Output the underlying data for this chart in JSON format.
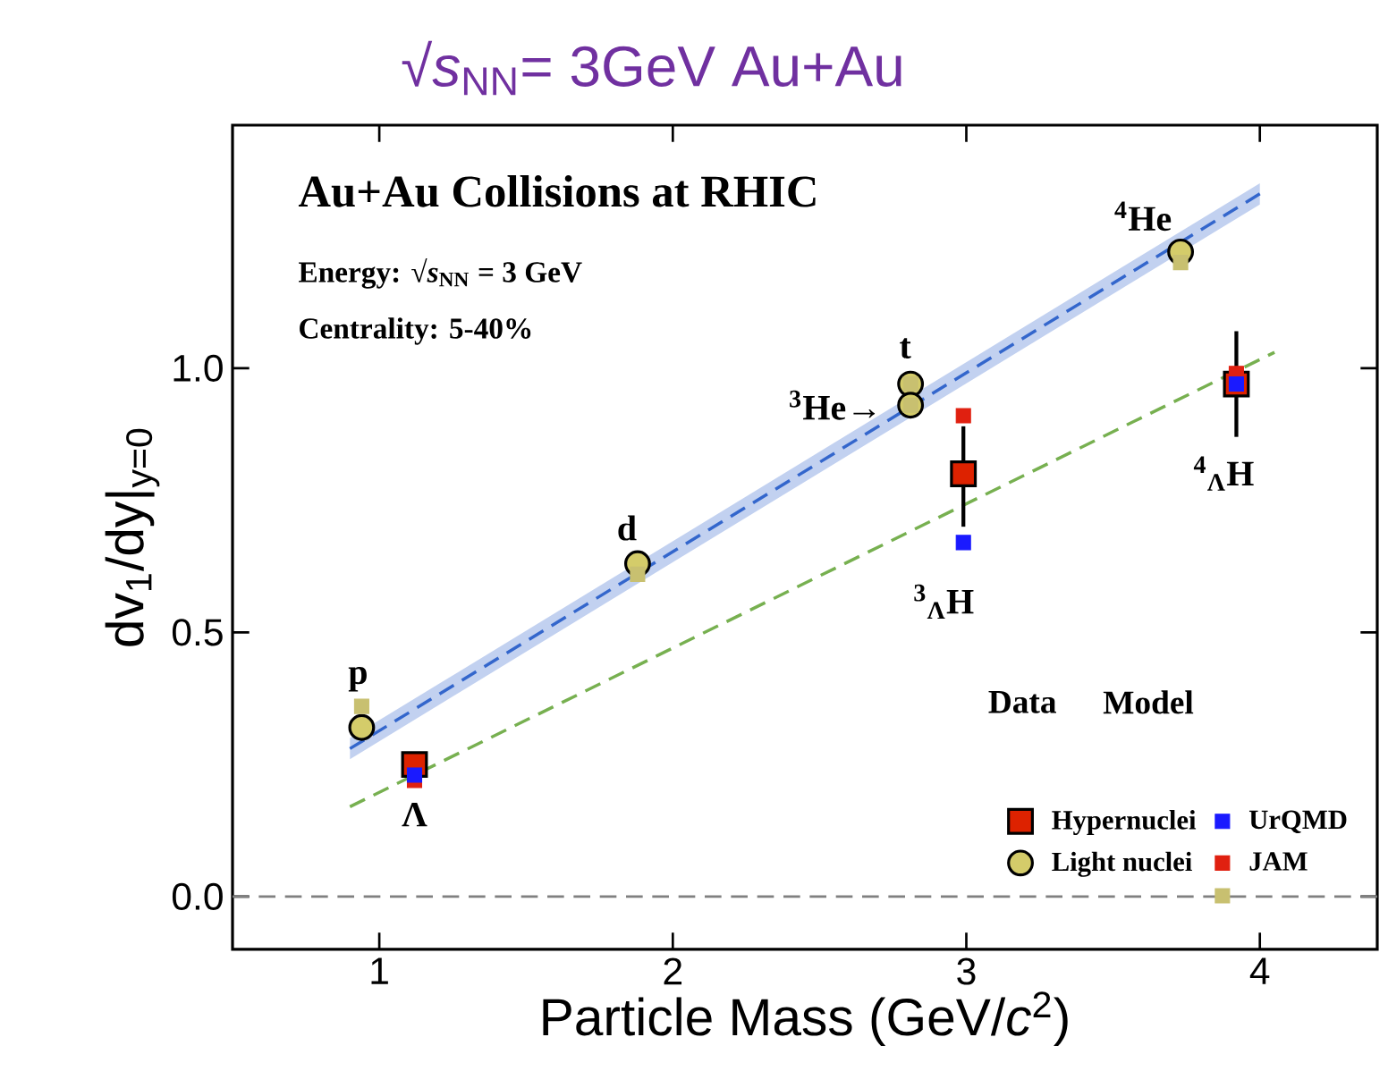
{
  "chart_data": {
    "type": "scatter",
    "title": "√*s*$_{NN}$= 3GeV Au+Au",
    "xlabel": "Particle Mass (GeV/*c*$^{2}$)",
    "ylabel": "dv$_{1}$/dy|$_{y=0}$",
    "xlim": [
      0.5,
      4.4
    ],
    "ylim": [
      -0.1,
      1.46
    ],
    "xticks": [
      1,
      2,
      3,
      4
    ],
    "yticks": [
      {
        "value": 0,
        "label": "0.0"
      },
      {
        "value": 0.5,
        "label": "0.5"
      },
      {
        "value": 1,
        "label": "1.0"
      }
    ],
    "grid": false,
    "legend": "bottom right",
    "ref_lines": [
      {
        "axis": "y",
        "value": 0,
        "color": "#808080",
        "line_style": "dashed"
      }
    ],
    "annotations": [
      "Au+Au Collisions at RHIC",
      "Energy:   √*s*$_{NN}$ = 3 GeV",
      "Centrality: 5-40%",
      "Data",
      "Model",
      {
        "text": "p",
        "x": 0.94,
        "y": 0.32
      },
      {
        "text": "d",
        "x": 1.88,
        "y": 0.63
      },
      {
        "text": "t",
        "x": 2.81,
        "y": 0.97
      },
      {
        "text": "$^{3}$He→",
        "x": 2.81,
        "y": 0.93
      },
      {
        "text": "$^{4}$He",
        "x": 3.73,
        "y": 1.22
      },
      {
        "text": "Λ",
        "x": 1.12,
        "y": 0.25
      },
      {
        "text": "$^{3}$$_{Λ}$H",
        "x": 2.99,
        "y": 0.67
      },
      {
        "text": "$^{4}$$_{Λ}$H",
        "x": 3.92,
        "y": 0.97
      }
    ],
    "series": [
      {
        "name": "Hypernuclei",
        "marker": "square",
        "color": "#dd2200",
        "x": [
          1.12,
          2.99,
          3.92
        ],
        "values": [
          0.25,
          0.8,
          0.97
        ],
        "errors": [
          null,
          [
            0.7,
            0.89
          ],
          [
            0.87,
            1.07
          ]
        ]
      },
      {
        "name": "Light nuclei",
        "marker": "circle",
        "color": "#d4cc6a",
        "x": [
          0.94,
          1.88,
          2.81,
          2.81,
          3.73
        ],
        "values": [
          0.32,
          0.63,
          0.97,
          0.93,
          1.22
        ]
      },
      {
        "name": "UrQMD",
        "marker": "square",
        "color": "#1a1aff",
        "x": [
          1.12,
          2.99,
          3.92
        ],
        "values": [
          0.23,
          0.67,
          0.97
        ]
      },
      {
        "name": "JAM",
        "marker": "square",
        "color": "#e02010",
        "x": [
          1.12,
          2.99,
          3.92
        ],
        "values": [
          0.22,
          0.91,
          0.99
        ]
      },
      {
        "marker": "square",
        "color": "#c8c070",
        "x": [
          0.94,
          1.88,
          2.81,
          2.81,
          3.73
        ],
        "values": [
          0.36,
          0.61,
          0.97,
          0.93,
          1.2
        ]
      },
      {
        "type": "line",
        "marker": "none",
        "line_style": "dashed",
        "color": "#3366cc",
        "x": [
          0.9,
          4.0
        ],
        "values": [
          0.28,
          1.33
        ],
        "lower": [
          0.26,
          1.31
        ],
        "upper": [
          0.3,
          1.35
        ]
      },
      {
        "type": "line",
        "marker": "none",
        "line_style": "dashed",
        "color": "#77b050",
        "x": [
          0.9,
          4.05
        ],
        "values": [
          0.17,
          1.03
        ]
      }
    ]
  }
}
